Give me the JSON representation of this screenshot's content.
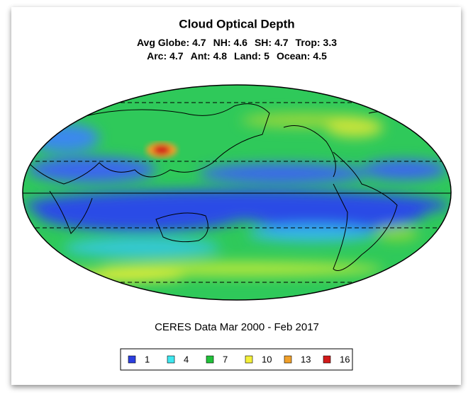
{
  "title": "Cloud Optical Depth",
  "stats": [
    [
      {
        "label": "Avg Globe:",
        "value": 4.7
      },
      {
        "label": "NH:",
        "value": 4.6
      },
      {
        "label": "SH:",
        "value": 4.7
      },
      {
        "label": "Trop:",
        "value": 3.3
      }
    ],
    [
      {
        "label": "Arc:",
        "value": 4.7
      },
      {
        "label": "Ant:",
        "value": 4.8
      },
      {
        "label": "Land:",
        "value": 5
      },
      {
        "label": "Ocean:",
        "value": 4.5
      }
    ]
  ],
  "caption": "CERES Data Mar 2000 - Feb 2017",
  "legend": [
    {
      "value": 1,
      "color": "#2c3fe0"
    },
    {
      "value": 4,
      "color": "#3ee8f0"
    },
    {
      "value": 7,
      "color": "#21c23a"
    },
    {
      "value": 10,
      "color": "#f4f03a"
    },
    {
      "value": 13,
      "color": "#f0a02a"
    },
    {
      "value": 16,
      "color": "#d21a1a"
    }
  ]
}
